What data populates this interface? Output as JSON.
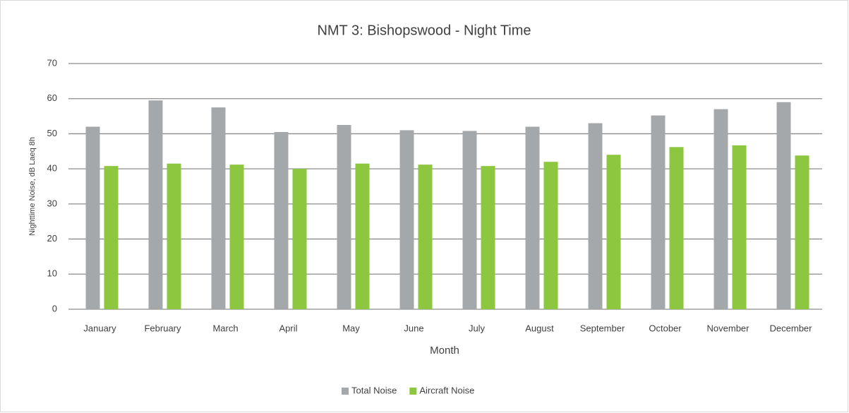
{
  "chart_data": {
    "type": "bar",
    "title": "NMT 3: Bishopswood - Night Time",
    "x_label": "Month",
    "y_label": "Nighttime Noise, dB Laeq 8h",
    "categories": [
      "January",
      "February",
      "March",
      "April",
      "May",
      "June",
      "July",
      "August",
      "September",
      "October",
      "November",
      "December"
    ],
    "series": [
      {
        "name": "Total Noise",
        "color": "#a5a8ab",
        "values": [
          52,
          59.5,
          57.5,
          50.5,
          52.5,
          51,
          50.8,
          52,
          53,
          55.2,
          57,
          59
        ]
      },
      {
        "name": "Aircraft Noise",
        "color": "#8dc63f",
        "values": [
          40.8,
          41.5,
          41.2,
          40,
          41.5,
          41.2,
          40.8,
          42,
          44,
          46.2,
          46.7,
          43.8
        ]
      }
    ],
    "ylim": [
      0,
      70
    ],
    "yticks": [
      0,
      10,
      20,
      30,
      40,
      50,
      60,
      70
    ],
    "grid": true,
    "legend": "bottom"
  }
}
